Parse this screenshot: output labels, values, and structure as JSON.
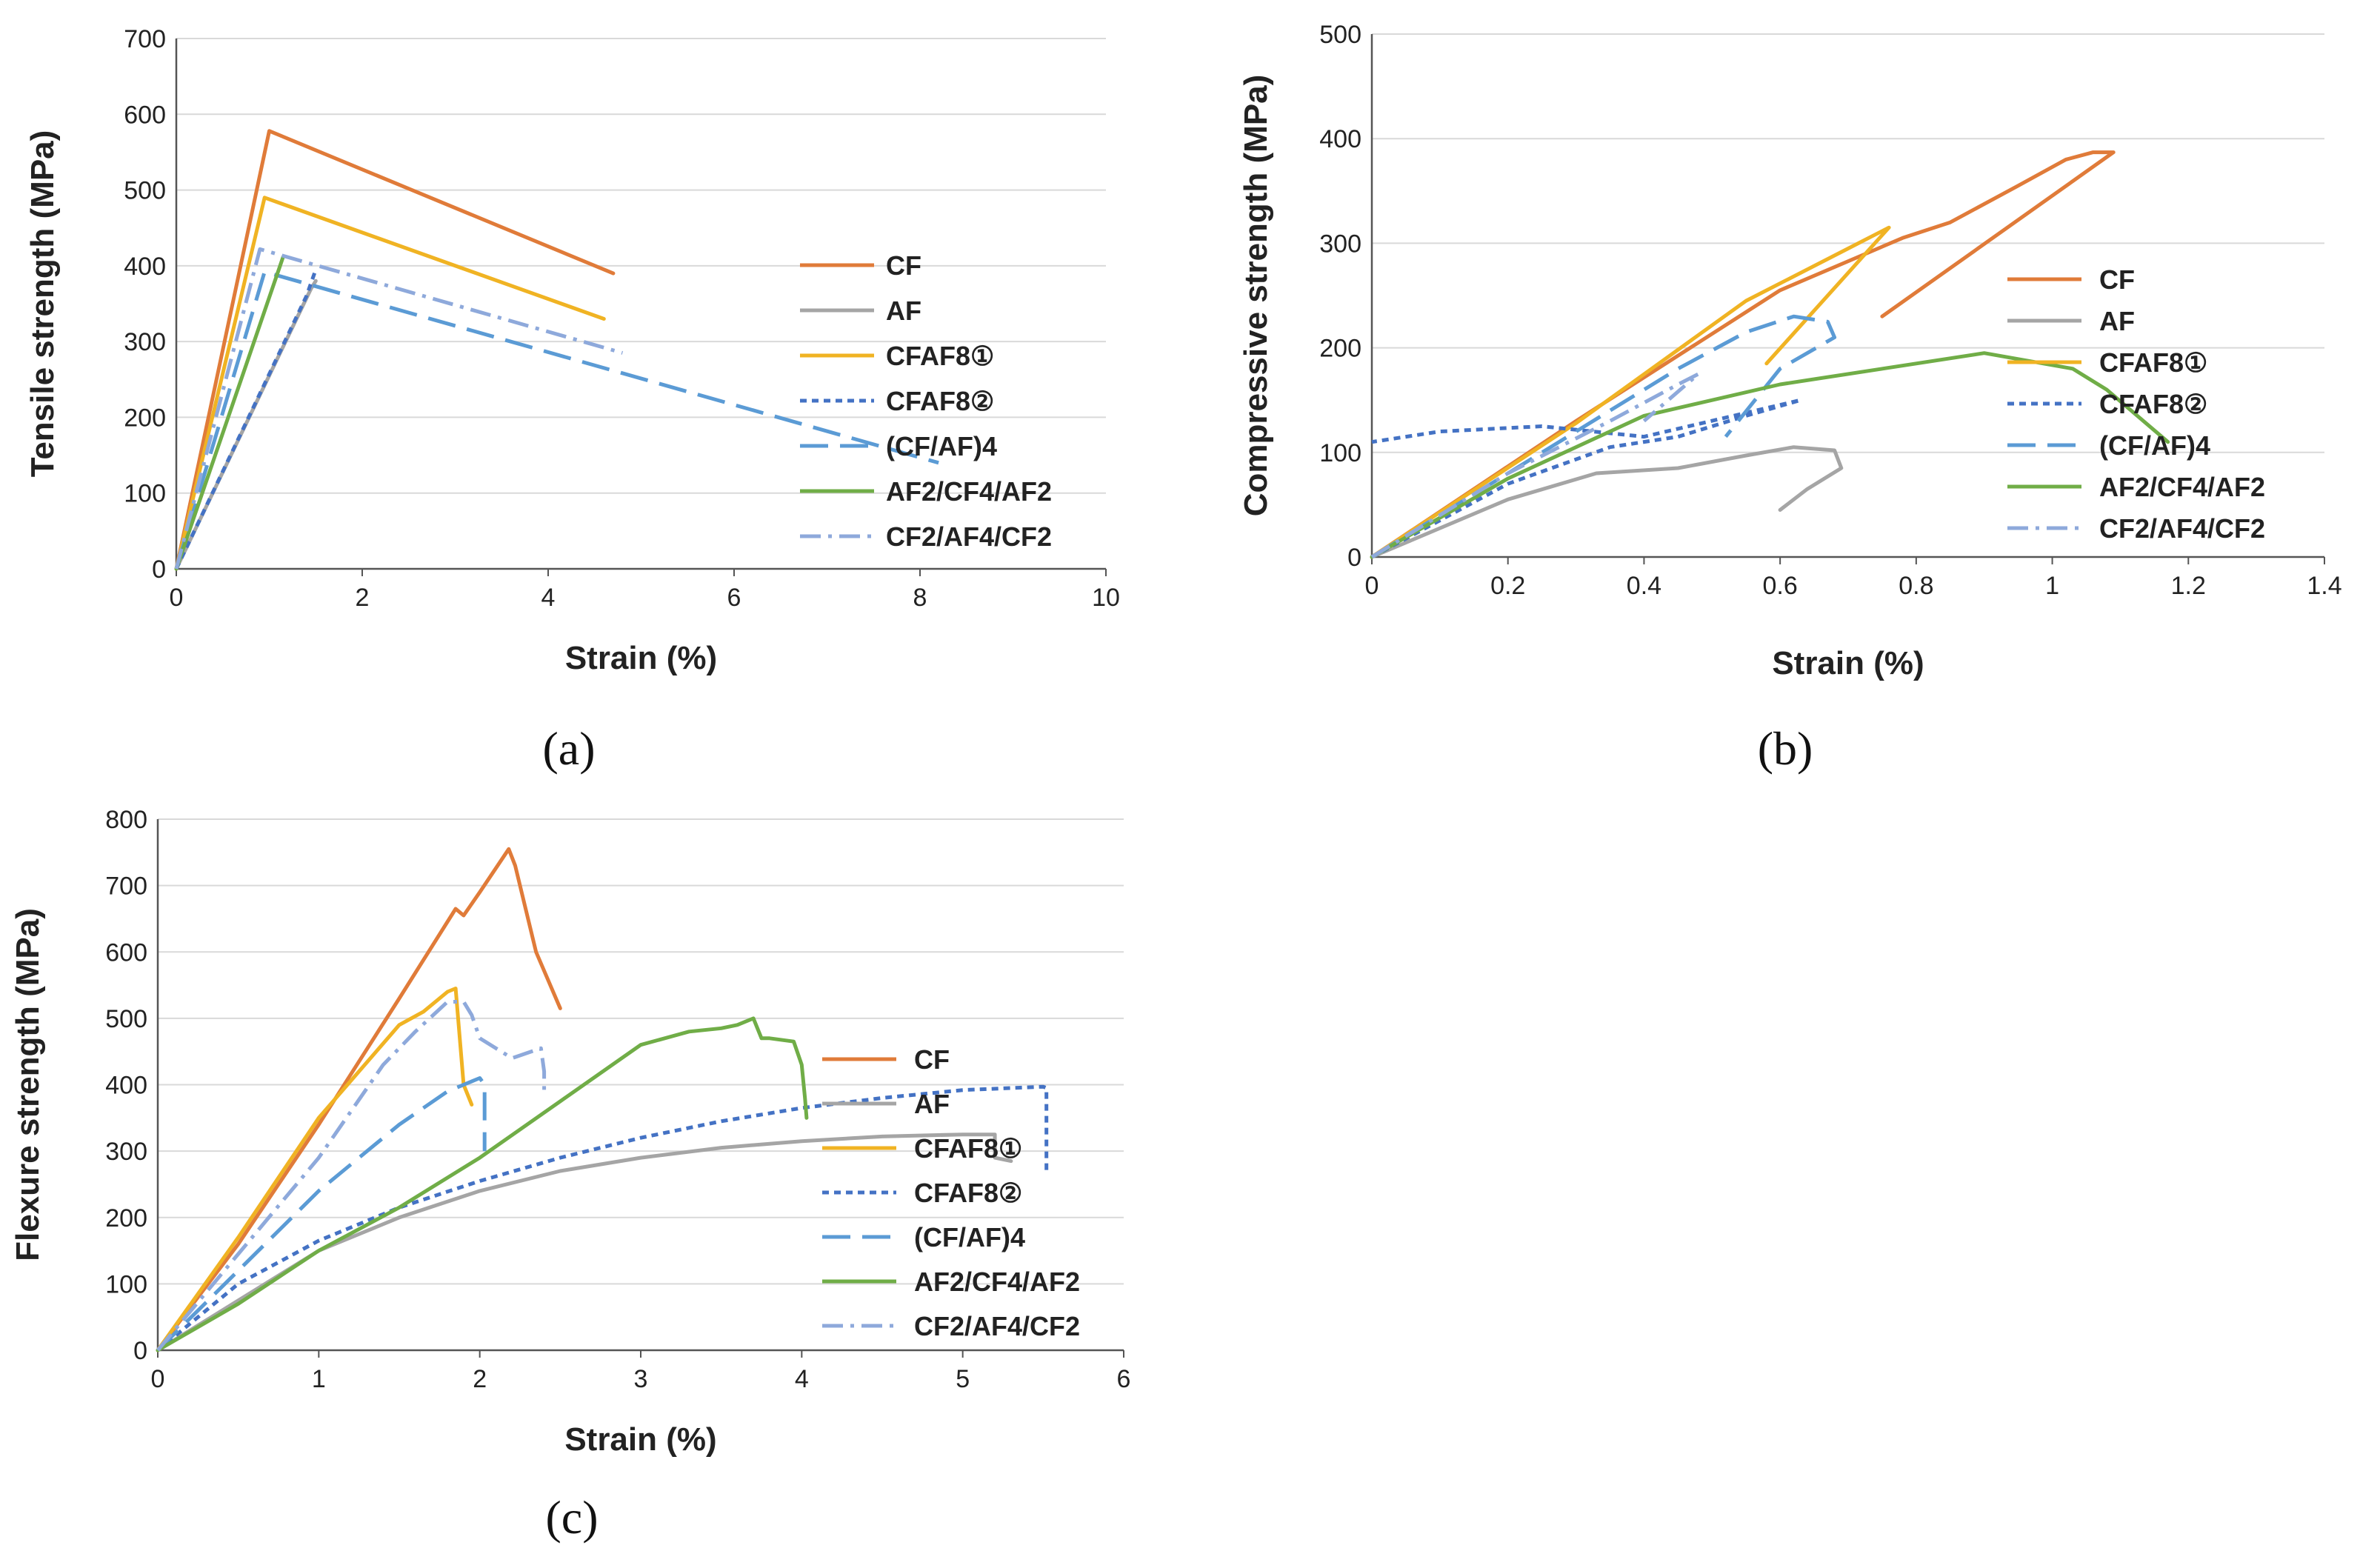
{
  "figure": {
    "legend_entries": [
      "CF",
      "AF",
      "CFAF8①",
      "CFAF8②",
      "(CF/AF)4",
      "AF2/CF4/AF2",
      "CF2/AF4/CF2"
    ],
    "colors": {
      "CF": "#E07B39",
      "AF": "#A5A5A5",
      "CFAF8①": "#F0B323",
      "CFAF8②": "#4472C4",
      "(CF/AF)4": "#5B9BD5",
      "AF2/CF4/AF2": "#70AD47",
      "CF2/AF4/CF2": "#8EA9DB"
    }
  },
  "chart_data": [
    {
      "panel": "a",
      "panel_label": "(a)",
      "type": "line",
      "title": "",
      "xlabel": "Strain (%)",
      "ylabel": "Tensile strength (MPa)",
      "xlim": [
        0,
        10
      ],
      "ylim": [
        0,
        700
      ],
      "xticks": [
        "0",
        "2",
        "4",
        "6",
        "8",
        "10"
      ],
      "yticks": [
        "0",
        "100",
        "200",
        "300",
        "400",
        "500",
        "600",
        "700"
      ],
      "grid": "horizontal",
      "legend": "right",
      "series": [
        {
          "name": "CF",
          "x": [
            0,
            1.0,
            4.7
          ],
          "y": [
            0,
            578,
            390
          ]
        },
        {
          "name": "AF",
          "x": [
            0,
            1.45,
            1.5
          ],
          "y": [
            0,
            370,
            380
          ]
        },
        {
          "name": "CFAF8①",
          "x": [
            0,
            0.95,
            4.6
          ],
          "y": [
            0,
            490,
            330
          ]
        },
        {
          "name": "CFAF8②",
          "x": [
            0,
            1.4,
            1.5
          ],
          "y": [
            0,
            360,
            395
          ]
        },
        {
          "name": "(CF/AF)4",
          "x": [
            0,
            0.95,
            8.2
          ],
          "y": [
            0,
            392,
            140
          ]
        },
        {
          "name": "AF2/CF4/AF2",
          "x": [
            0,
            1.15
          ],
          "y": [
            0,
            412
          ]
        },
        {
          "name": "CF2/AF4/CF2",
          "x": [
            0,
            0.9,
            4.8
          ],
          "y": [
            0,
            422,
            285
          ]
        }
      ]
    },
    {
      "panel": "b",
      "panel_label": "(b)",
      "type": "line",
      "title": "",
      "xlabel": "Strain (%)",
      "ylabel": "Compressive strength (MPa)",
      "xlim": [
        0,
        1.4
      ],
      "ylim": [
        0,
        500
      ],
      "xticks": [
        "0",
        "0.2",
        "0.4",
        "0.6",
        "0.8",
        "1",
        "1.2",
        "1.4"
      ],
      "yticks": [
        "0",
        "100",
        "200",
        "300",
        "400",
        "500"
      ],
      "grid": "horizontal",
      "legend": "right",
      "series": [
        {
          "name": "CF",
          "x": [
            0,
            0.3,
            0.6,
            0.78,
            0.85,
            0.95,
            1.02,
            1.06,
            1.09,
            0.75
          ],
          "y": [
            0,
            130,
            255,
            305,
            320,
            355,
            380,
            387,
            387,
            230
          ]
        },
        {
          "name": "AF",
          "x": [
            0,
            0.2,
            0.33,
            0.45,
            0.55,
            0.62,
            0.68,
            0.69,
            0.64,
            0.6
          ],
          "y": [
            0,
            55,
            80,
            85,
            97,
            105,
            102,
            85,
            65,
            45
          ]
        },
        {
          "name": "CFAF8①",
          "x": [
            0,
            0.3,
            0.55,
            0.7,
            0.76,
            0.58
          ],
          "y": [
            0,
            128,
            245,
            295,
            315,
            185
          ]
        },
        {
          "name": "CFAF8②",
          "x": [
            0,
            0.2,
            0.35,
            0.45,
            0.55,
            0.63,
            0.4,
            0.25,
            0.1,
            0
          ],
          "y": [
            0,
            70,
            105,
            115,
            135,
            150,
            115,
            125,
            120,
            110
          ]
        },
        {
          "name": "(CF/AF)4",
          "x": [
            0,
            0.3,
            0.45,
            0.55,
            0.62,
            0.67,
            0.68,
            0.6,
            0.52
          ],
          "y": [
            0,
            120,
            180,
            215,
            230,
            225,
            210,
            180,
            115
          ]
        },
        {
          "name": "AF2/CF4/AF2",
          "x": [
            0,
            0.2,
            0.4,
            0.6,
            0.8,
            0.9,
            1.03,
            1.08,
            1.17
          ],
          "y": [
            0,
            75,
            135,
            165,
            185,
            195,
            180,
            160,
            110
          ]
        },
        {
          "name": "CF2/AF4/CF2",
          "x": [
            0,
            0.2,
            0.35,
            0.45,
            0.48,
            0.4
          ],
          "y": [
            0,
            80,
            130,
            165,
            175,
            130
          ]
        }
      ]
    },
    {
      "panel": "c",
      "panel_label": "(c)",
      "type": "line",
      "title": "",
      "xlabel": "Strain (%)",
      "ylabel": "Flexure strength (MPa)",
      "xlim": [
        0,
        6
      ],
      "ylim": [
        0,
        800
      ],
      "xticks": [
        "0",
        "1",
        "2",
        "3",
        "4",
        "5",
        "6"
      ],
      "yticks": [
        "0",
        "100",
        "200",
        "300",
        "400",
        "500",
        "600",
        "700",
        "800"
      ],
      "grid": "horizontal",
      "legend": "right",
      "series": [
        {
          "name": "CF",
          "x": [
            0,
            0.5,
            1.0,
            1.5,
            1.85,
            1.9,
            2.0,
            2.18,
            2.22,
            2.35,
            2.5
          ],
          "y": [
            0,
            160,
            340,
            530,
            665,
            655,
            690,
            755,
            730,
            600,
            515
          ]
        },
        {
          "name": "AF",
          "x": [
            0,
            0.5,
            1.0,
            1.5,
            2.0,
            2.5,
            3.0,
            3.5,
            4.0,
            4.5,
            5.0,
            5.2,
            5.2,
            5.3
          ],
          "y": [
            0,
            75,
            150,
            200,
            240,
            270,
            290,
            305,
            315,
            322,
            325,
            325,
            290,
            285
          ]
        },
        {
          "name": "CFAF8①",
          "x": [
            0,
            0.5,
            1.0,
            1.5,
            1.65,
            1.8,
            1.85,
            1.9,
            1.95
          ],
          "y": [
            0,
            170,
            350,
            490,
            510,
            540,
            545,
            400,
            370
          ]
        },
        {
          "name": "CFAF8②",
          "x": [
            0,
            0.5,
            1.0,
            1.5,
            2.0,
            2.5,
            3.0,
            3.5,
            4.0,
            4.5,
            5.0,
            5.5,
            5.52,
            5.52
          ],
          "y": [
            0,
            100,
            165,
            215,
            255,
            290,
            320,
            345,
            365,
            380,
            392,
            397,
            395,
            270
          ]
        },
        {
          "name": "(CF/AF)4",
          "x": [
            0,
            0.5,
            1.0,
            1.5,
            1.8,
            2.0,
            2.03,
            2.03
          ],
          "y": [
            0,
            120,
            240,
            340,
            390,
            410,
            400,
            300
          ]
        },
        {
          "name": "AF2/CF4/AF2",
          "x": [
            0,
            0.5,
            1.0,
            1.5,
            2.0,
            2.5,
            3.0,
            3.3,
            3.5,
            3.6,
            3.7,
            3.75,
            3.8,
            3.95,
            4.0,
            4.02,
            4.03
          ],
          "y": [
            0,
            70,
            150,
            215,
            290,
            375,
            460,
            480,
            485,
            490,
            500,
            470,
            470,
            465,
            430,
            380,
            350
          ]
        },
        {
          "name": "CF2/AF4/CF2",
          "x": [
            0,
            0.5,
            1.0,
            1.4,
            1.6,
            1.8,
            1.9,
            1.95,
            2.0,
            2.2,
            2.38,
            2.4,
            2.4
          ],
          "y": [
            0,
            145,
            290,
            430,
            480,
            525,
            525,
            505,
            470,
            440,
            455,
            420,
            390
          ]
        }
      ]
    }
  ]
}
